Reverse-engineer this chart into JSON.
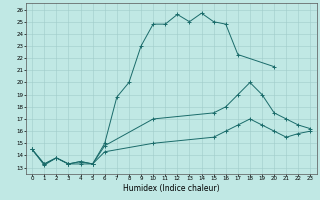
{
  "xlabel": "Humidex (Indice chaleur)",
  "xlim": [
    -0.5,
    23.5
  ],
  "ylim": [
    12.5,
    26.5
  ],
  "xticks": [
    0,
    1,
    2,
    3,
    4,
    5,
    6,
    7,
    8,
    9,
    10,
    11,
    12,
    13,
    14,
    15,
    16,
    17,
    18,
    19,
    20,
    21,
    22,
    23
  ],
  "yticks": [
    13,
    14,
    15,
    16,
    17,
    18,
    19,
    20,
    21,
    22,
    23,
    24,
    25,
    26
  ],
  "bg_color": "#c0e8e4",
  "grid_color": "#a0ccca",
  "line_color": "#1a6b6a",
  "curve1_x": [
    0,
    1,
    2,
    3,
    4,
    5,
    6,
    7,
    8,
    9,
    10,
    11,
    12,
    13,
    14,
    15,
    16,
    17,
    20
  ],
  "curve1_y": [
    14.5,
    13.2,
    13.8,
    13.3,
    13.3,
    13.3,
    15.0,
    18.8,
    20.0,
    23.0,
    24.8,
    24.8,
    25.6,
    25.0,
    25.7,
    25.0,
    24.8,
    22.3,
    21.3
  ],
  "curve2_x": [
    0,
    1,
    2,
    3,
    4,
    5,
    6,
    10,
    15,
    16,
    17,
    18,
    19,
    20,
    21,
    22,
    23
  ],
  "curve2_y": [
    14.5,
    13.3,
    13.8,
    13.3,
    13.5,
    13.3,
    14.8,
    17.0,
    17.5,
    18.0,
    19.0,
    20.0,
    19.0,
    17.5,
    17.0,
    16.5,
    16.2
  ],
  "curve3_x": [
    0,
    1,
    2,
    3,
    4,
    5,
    6,
    10,
    15,
    16,
    17,
    18,
    19,
    20,
    21,
    22,
    23
  ],
  "curve3_y": [
    14.5,
    13.3,
    13.8,
    13.3,
    13.5,
    13.3,
    14.3,
    15.0,
    15.5,
    16.0,
    16.5,
    17.0,
    16.5,
    16.0,
    15.5,
    15.8,
    16.0
  ]
}
